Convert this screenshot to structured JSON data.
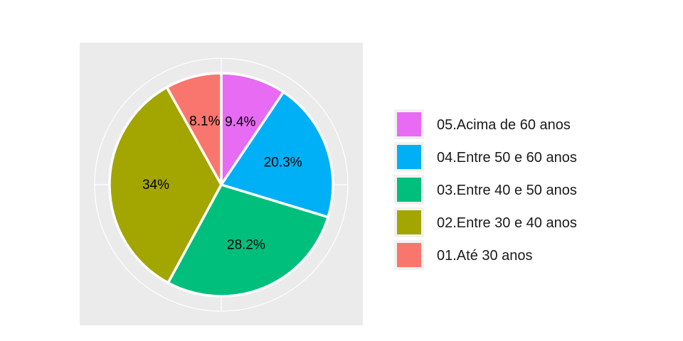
{
  "chart_data": {
    "type": "pie",
    "title": "",
    "slices": [
      {
        "label": "05.Acima de 60 anos",
        "value": 9.4,
        "display": "9.4%",
        "color": "#E76BF3"
      },
      {
        "label": "04.Entre 50 e 60 anos",
        "value": 20.3,
        "display": "20.3%",
        "color": "#00B0F6"
      },
      {
        "label": "03.Entre 40 e 50 anos",
        "value": 28.2,
        "display": "28.2%",
        "color": "#00BF7D"
      },
      {
        "label": "02.Entre 30 e 40 anos",
        "value": 34.0,
        "display": "34%",
        "color": "#A3A500"
      },
      {
        "label": "01.Até 30 anos",
        "value": 8.1,
        "display": "8.1%",
        "color": "#F8766D"
      }
    ],
    "legend_order": [
      0,
      1,
      2,
      3,
      4
    ],
    "legend_position": "right",
    "panel_background": "#EBEBEB",
    "grid": true,
    "start_angle": "12 o'clock",
    "direction": "clockwise"
  }
}
